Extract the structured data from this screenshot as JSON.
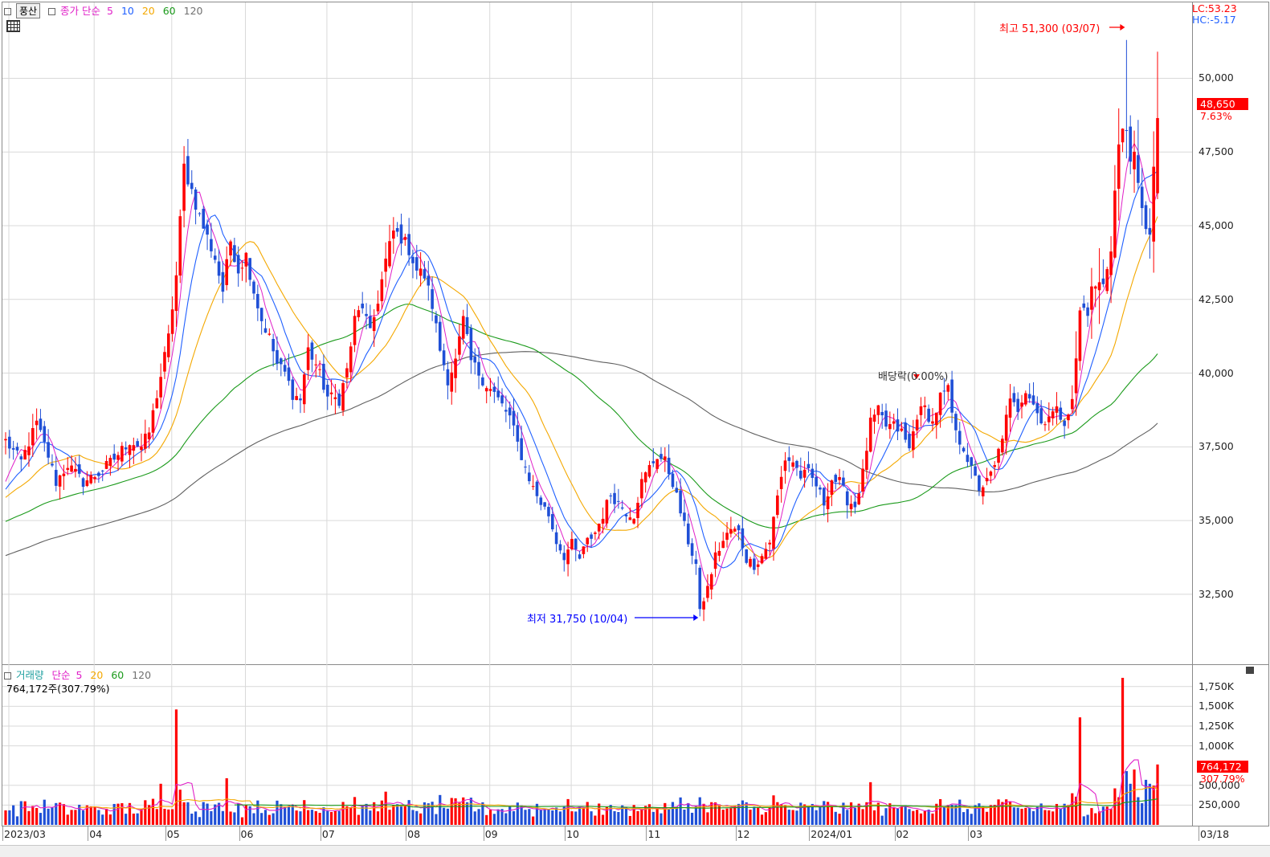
{
  "price_panel": {
    "tag": "풍산",
    "legend": {
      "label": "종가 단순",
      "periods": [
        "5",
        "10",
        "20",
        "60",
        "120"
      ]
    },
    "lc": "LC:53.23",
    "hc": "HC:-5.17",
    "last_price": "48,650",
    "last_change": "7.63%",
    "annotations": {
      "high": "최고 51,300 (03/07)",
      "low": "최저 31,750 (10/04)",
      "dividend": "배당락(0.00%)"
    }
  },
  "volume_panel": {
    "legend_label": "거래량",
    "legend_ma": "단순",
    "legend_periods": [
      "5",
      "20",
      "60",
      "120"
    ],
    "summary": "764,172주(307.79%)",
    "last_volume": "764,172",
    "last_ratio": "307.79%"
  },
  "colors": {
    "up": "#ff0000",
    "down": "#1f4fd6",
    "ma5": "#e020c8",
    "ma10": "#2060ff",
    "ma20": "#f4a800",
    "ma60": "#1a9a1a",
    "ma120": "#606060",
    "grid": "#d9d9d9"
  },
  "chart_data": {
    "type": "candlestick",
    "x_ticks": [
      "2023/03",
      "04",
      "05",
      "06",
      "07",
      "08",
      "09",
      "10",
      "11",
      "12",
      "2024/01",
      "02",
      "03",
      "03/18"
    ],
    "y_ticks": [
      "50,000",
      "47,500",
      "45,000",
      "42,500",
      "40,000",
      "37,500",
      "35,000",
      "32,500"
    ],
    "ylim": [
      30100,
      52600
    ],
    "volume_ticks": [
      "1,750K",
      "1,500K",
      "1,250K",
      "1,000K",
      "500,000",
      "250,000"
    ],
    "volume_ylim": [
      0,
      1900000
    ],
    "anchors": [
      [
        0,
        37700
      ],
      [
        4,
        37000
      ],
      [
        8,
        38300
      ],
      [
        11,
        37200
      ],
      [
        13,
        36300
      ],
      [
        16,
        36900
      ],
      [
        20,
        36300
      ],
      [
        24,
        36600
      ],
      [
        28,
        37100
      ],
      [
        32,
        37700
      ],
      [
        35,
        37500
      ],
      [
        37,
        38000
      ],
      [
        40,
        39900
      ],
      [
        42,
        41200
      ],
      [
        44,
        43300
      ],
      [
        46,
        47000
      ],
      [
        48,
        46200
      ],
      [
        50,
        45300
      ],
      [
        52,
        44600
      ],
      [
        54,
        43900
      ],
      [
        56,
        42800
      ],
      [
        58,
        44500
      ],
      [
        60,
        43500
      ],
      [
        62,
        44000
      ],
      [
        64,
        42800
      ],
      [
        66,
        41800
      ],
      [
        68,
        41200
      ],
      [
        70,
        40300
      ],
      [
        72,
        40000
      ],
      [
        74,
        39300
      ],
      [
        76,
        39100
      ],
      [
        78,
        40800
      ],
      [
        80,
        40300
      ],
      [
        83,
        39200
      ],
      [
        86,
        39100
      ],
      [
        88,
        40100
      ],
      [
        90,
        41800
      ],
      [
        92,
        42300
      ],
      [
        94,
        41300
      ],
      [
        96,
        42500
      ],
      [
        98,
        43800
      ],
      [
        100,
        44800
      ],
      [
        102,
        44600
      ],
      [
        104,
        44200
      ],
      [
        106,
        43500
      ],
      [
        108,
        43300
      ],
      [
        110,
        42300
      ],
      [
        112,
        40800
      ],
      [
        114,
        39800
      ],
      [
        116,
        40400
      ],
      [
        118,
        41800
      ],
      [
        120,
        40400
      ],
      [
        122,
        40000
      ],
      [
        124,
        39600
      ],
      [
        126,
        39300
      ],
      [
        128,
        38900
      ],
      [
        130,
        38500
      ],
      [
        132,
        37600
      ],
      [
        134,
        36800
      ],
      [
        136,
        36100
      ],
      [
        138,
        35600
      ],
      [
        140,
        35200
      ],
      [
        142,
        34300
      ],
      [
        144,
        33800
      ],
      [
        146,
        34200
      ],
      [
        148,
        33700
      ],
      [
        150,
        34300
      ],
      [
        152,
        34600
      ],
      [
        154,
        35200
      ],
      [
        156,
        35900
      ],
      [
        158,
        35600
      ],
      [
        160,
        35300
      ],
      [
        162,
        35200
      ],
      [
        164,
        36300
      ],
      [
        166,
        36800
      ],
      [
        168,
        37200
      ],
      [
        170,
        37000
      ],
      [
        172,
        36300
      ],
      [
        174,
        35300
      ],
      [
        176,
        34300
      ],
      [
        178,
        33500
      ],
      [
        179,
        32000
      ],
      [
        181,
        32700
      ],
      [
        183,
        33800
      ],
      [
        185,
        34300
      ],
      [
        187,
        34700
      ],
      [
        189,
        34600
      ],
      [
        191,
        33700
      ],
      [
        193,
        33500
      ],
      [
        195,
        33800
      ],
      [
        197,
        34300
      ],
      [
        199,
        35800
      ],
      [
        201,
        37100
      ],
      [
        203,
        37000
      ],
      [
        205,
        36500
      ],
      [
        207,
        36600
      ],
      [
        209,
        36200
      ],
      [
        211,
        35600
      ],
      [
        213,
        36400
      ],
      [
        215,
        36300
      ],
      [
        217,
        35700
      ],
      [
        219,
        35500
      ],
      [
        221,
        36600
      ],
      [
        223,
        38300
      ],
      [
        225,
        38700
      ],
      [
        227,
        38200
      ],
      [
        229,
        38200
      ],
      [
        231,
        38000
      ],
      [
        233,
        37400
      ],
      [
        235,
        38600
      ],
      [
        237,
        38800
      ],
      [
        239,
        38300
      ],
      [
        241,
        39200
      ],
      [
        243,
        39400
      ],
      [
        245,
        37900
      ],
      [
        247,
        37500
      ],
      [
        249,
        36700
      ],
      [
        251,
        36100
      ],
      [
        253,
        36300
      ],
      [
        255,
        36800
      ],
      [
        257,
        37900
      ],
      [
        259,
        39000
      ],
      [
        261,
        38800
      ],
      [
        263,
        39500
      ],
      [
        265,
        39000
      ],
      [
        267,
        38300
      ],
      [
        269,
        38600
      ],
      [
        271,
        38700
      ],
      [
        273,
        38400
      ],
      [
        275,
        39000
      ],
      [
        277,
        42000
      ],
      [
        279,
        42300
      ],
      [
        281,
        43000
      ],
      [
        283,
        42900
      ],
      [
        285,
        44500
      ],
      [
        287,
        47700
      ],
      [
        289,
        48300
      ],
      [
        291,
        47000
      ],
      [
        293,
        45300
      ],
      [
        295,
        45000
      ],
      [
        297,
        48650
      ]
    ]
  }
}
